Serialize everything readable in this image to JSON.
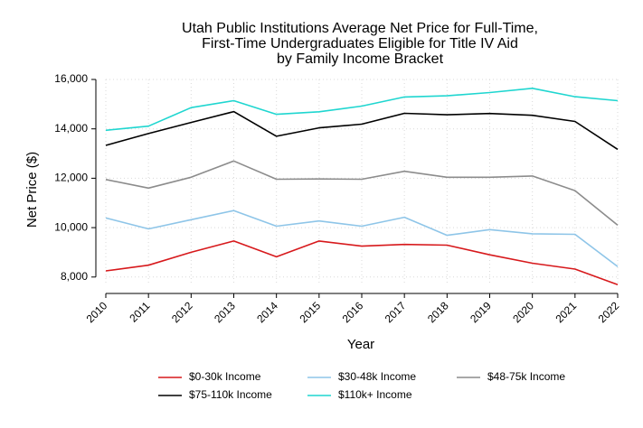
{
  "chart_data": {
    "type": "line",
    "title_lines": [
      "Utah Public Institutions Average Net Price for Full-Time,",
      "First-Time Undergraduates Eligible for Title IV Aid",
      "by Family Income Bracket"
    ],
    "xlabel": "Year",
    "ylabel": "Net Price ($)",
    "x": [
      "2010",
      "2011",
      "2012",
      "2013",
      "2014",
      "2015",
      "2016",
      "2017",
      "2018",
      "2019",
      "2020",
      "2021",
      "2022"
    ],
    "y_ticks": [
      "8,000",
      "10,000",
      "12,000",
      "14,000",
      "16,000"
    ],
    "ylim": [
      7700,
      16000
    ],
    "grid": true,
    "legend_position": "bottom",
    "series": [
      {
        "name": "$0-30k Income",
        "color": "#d7191c",
        "values": [
          8250,
          8480,
          9000,
          9460,
          8820,
          9460,
          9250,
          9320,
          9290,
          8900,
          8560,
          8320,
          7690
        ]
      },
      {
        "name": "$30-48k Income",
        "color": "#8ec5e8",
        "values": [
          10390,
          9950,
          10320,
          10690,
          10060,
          10270,
          10060,
          10420,
          9690,
          9920,
          9750,
          9730,
          8420
        ]
      },
      {
        "name": "$48-75k Income",
        "color": "#8c8c8c",
        "values": [
          11950,
          11600,
          12040,
          12700,
          11960,
          11970,
          11960,
          12280,
          12040,
          12040,
          12090,
          11500,
          10100
        ]
      },
      {
        "name": "$75-110k Income",
        "color": "#000000",
        "values": [
          13330,
          13810,
          14260,
          14700,
          13700,
          14040,
          14190,
          14630,
          14570,
          14620,
          14550,
          14300,
          13170
        ]
      },
      {
        "name": "$110k+ Income",
        "color": "#1fd6d0",
        "values": [
          13940,
          14110,
          14860,
          15140,
          14590,
          14690,
          14920,
          15290,
          15340,
          15470,
          15640,
          15300,
          15140
        ]
      }
    ]
  }
}
